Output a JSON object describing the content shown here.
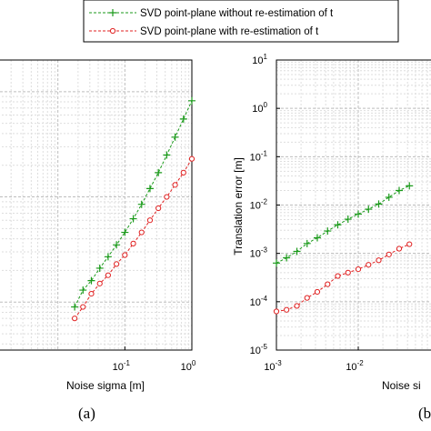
{
  "legend": {
    "position": "top",
    "items": [
      {
        "label": "SVD point-plane without re-estimation of t",
        "color": "#1a9a1a",
        "marker": "plus",
        "line": "dashed"
      },
      {
        "label": "SVD point-plane with re-estimation of t",
        "color": "#e02020",
        "marker": "circle",
        "line": "dashed"
      }
    ]
  },
  "panel_labels": [
    "(a)",
    "(b)"
  ],
  "chart_data": [
    {
      "type": "line",
      "panel": "(a)",
      "xlabel": "Noise sigma [m]",
      "ylabel": "",
      "xscale": "log",
      "yscale": "log",
      "xlim": [
        0.001,
        1
      ],
      "grid": true,
      "x_ticks": [
        {
          "base": "10",
          "exp": "-1",
          "value": 0.1
        },
        {
          "base": "10",
          "exp": "0",
          "value": 1
        }
      ],
      "series": [
        {
          "name": "SVD point-plane without re-estimation of t",
          "x": [
            0.0178,
            0.0237,
            0.0316,
            0.0422,
            0.0562,
            0.075,
            0.1,
            0.1334,
            0.1778,
            0.2371,
            0.3162,
            0.4217,
            0.5623,
            0.7499,
            1.0
          ],
          "y": [
            0.0009,
            0.0013,
            0.0016,
            0.0021,
            0.0027,
            0.0035,
            0.0046,
            0.0062,
            0.0085,
            0.012,
            0.017,
            0.025,
            0.037,
            0.055,
            0.082
          ]
        },
        {
          "name": "SVD point-plane with re-estimation of t",
          "x": [
            0.0178,
            0.0237,
            0.0316,
            0.0422,
            0.0562,
            0.075,
            0.1,
            0.1334,
            0.1778,
            0.2371,
            0.3162,
            0.4217,
            0.5623,
            0.7499,
            1.0
          ],
          "y": [
            0.0007,
            0.0009,
            0.0012,
            0.0015,
            0.0018,
            0.0023,
            0.0028,
            0.0036,
            0.0046,
            0.006,
            0.0078,
            0.01,
            0.013,
            0.017,
            0.023
          ]
        }
      ]
    },
    {
      "type": "line",
      "panel": "(b)",
      "xlabel": "Noise si",
      "ylabel": "Translation error [m]",
      "xscale": "log",
      "yscale": "log",
      "xlim": [
        0.001,
        0.1
      ],
      "ylim": [
        1e-05,
        10
      ],
      "grid": true,
      "x_ticks": [
        {
          "base": "10",
          "exp": "-3",
          "value": 0.001
        },
        {
          "base": "10",
          "exp": "-2",
          "value": 0.01
        }
      ],
      "y_ticks": [
        {
          "base": "10",
          "exp": "1",
          "value": 10
        },
        {
          "base": "10",
          "exp": "0",
          "value": 1
        },
        {
          "base": "10",
          "exp": "-1",
          "value": 0.1
        },
        {
          "base": "10",
          "exp": "-2",
          "value": 0.01
        },
        {
          "base": "10",
          "exp": "-3",
          "value": 0.001
        },
        {
          "base": "10",
          "exp": "-4",
          "value": 0.0001
        },
        {
          "base": "10",
          "exp": "-5",
          "value": 1e-05
        }
      ],
      "series": [
        {
          "name": "SVD point-plane without re-estimation of t",
          "x": [
            0.001,
            0.00133,
            0.00178,
            0.00237,
            0.00316,
            0.00422,
            0.00562,
            0.0075,
            0.01,
            0.01334,
            0.01778,
            0.02371,
            0.03162,
            0.04217
          ],
          "y": [
            0.00063,
            0.00081,
            0.0011,
            0.0016,
            0.0021,
            0.0029,
            0.0039,
            0.0051,
            0.0065,
            0.0082,
            0.0105,
            0.0145,
            0.02,
            0.025
          ]
        },
        {
          "name": "SVD point-plane with re-estimation of t",
          "x": [
            0.001,
            0.00133,
            0.00178,
            0.00237,
            0.00316,
            0.00422,
            0.00562,
            0.0075,
            0.01,
            0.01334,
            0.01778,
            0.02371,
            0.03162,
            0.04217
          ],
          "y": [
            6.3e-05,
            6.8e-05,
            8.2e-05,
            0.00012,
            0.00016,
            0.00023,
            0.00034,
            0.0004,
            0.00047,
            0.00058,
            0.00072,
            0.00095,
            0.00125,
            0.00155
          ]
        }
      ]
    }
  ]
}
